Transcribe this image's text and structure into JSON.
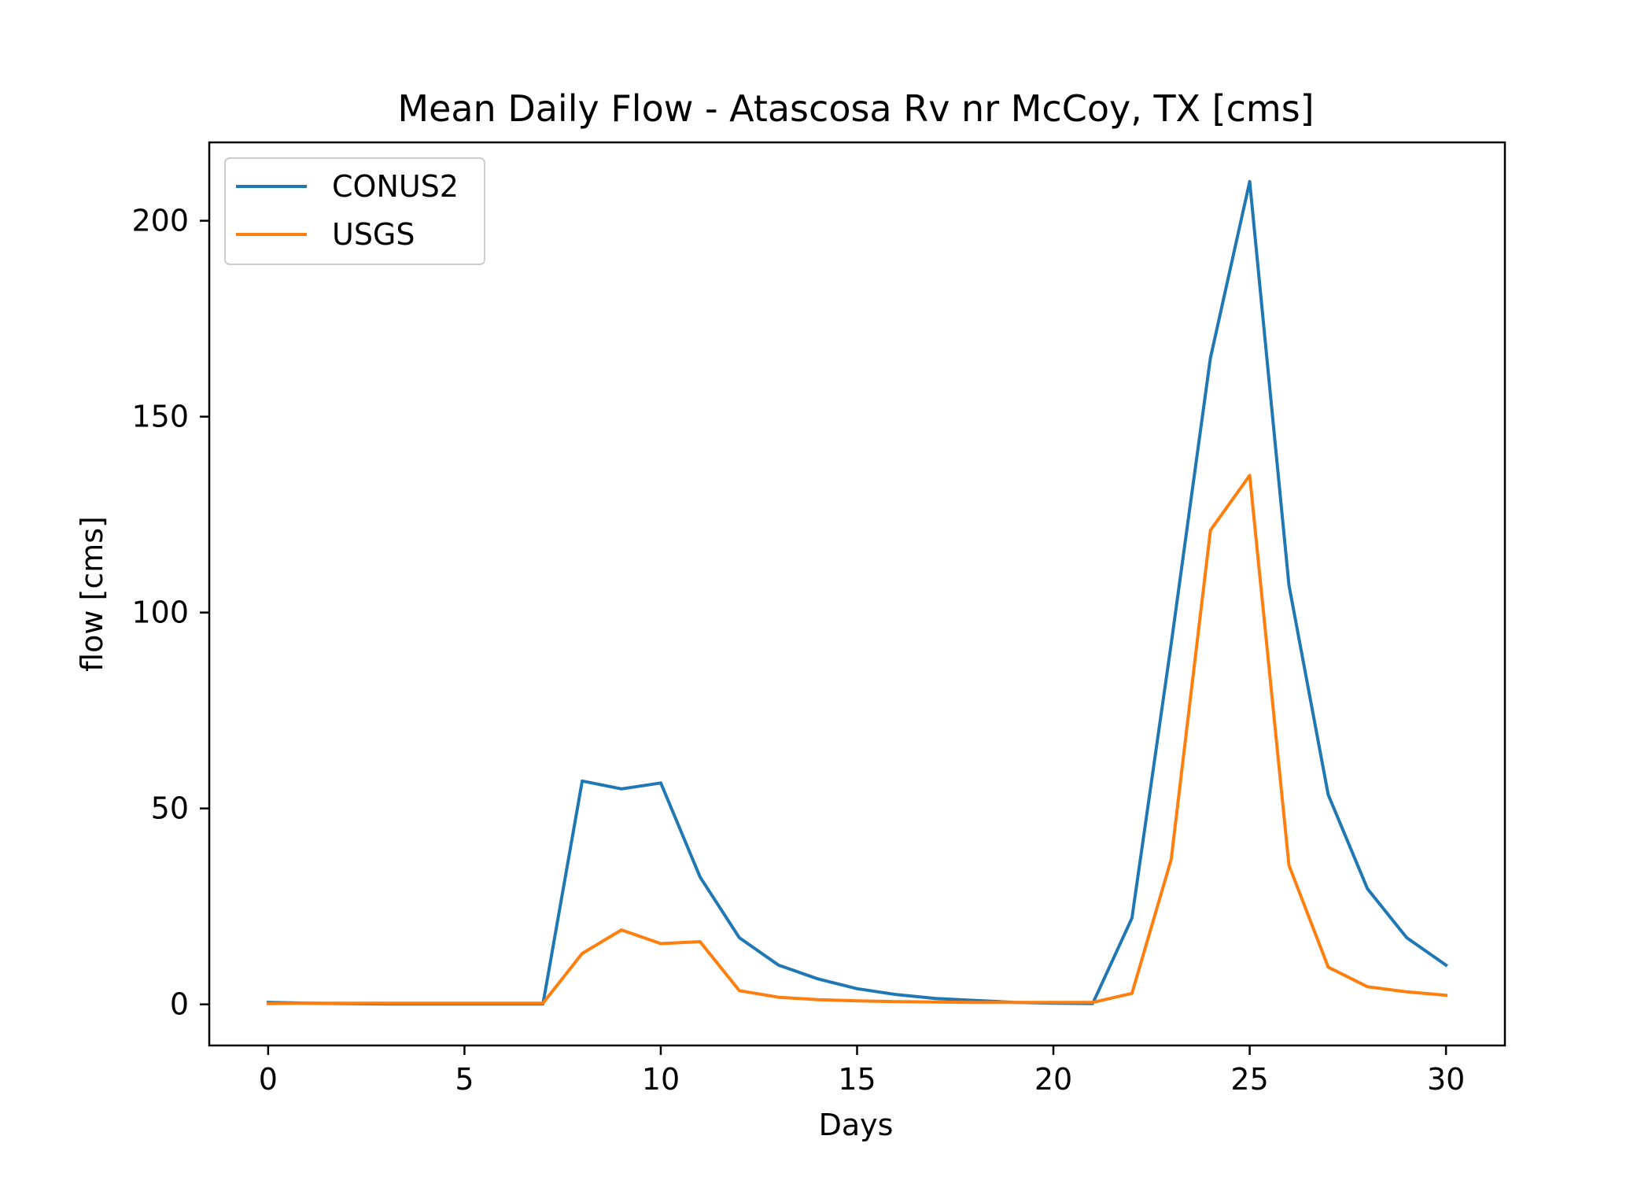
{
  "chart_data": {
    "type": "line",
    "title": "Mean Daily Flow - Atascosa Rv nr McCoy, TX [cms]",
    "xlabel": "Days",
    "ylabel": "flow [cms]",
    "xlim": [
      -1.5,
      31.5
    ],
    "ylim": [
      -10.5,
      220
    ],
    "xticks": [
      0,
      5,
      10,
      15,
      20,
      25,
      30
    ],
    "yticks": [
      0,
      50,
      100,
      150,
      200
    ],
    "grid": false,
    "legend_position": "top-left",
    "x": [
      0,
      1,
      2,
      3,
      4,
      5,
      6,
      7,
      8,
      9,
      10,
      11,
      12,
      13,
      14,
      15,
      16,
      17,
      18,
      19,
      20,
      21,
      22,
      23,
      24,
      25,
      26,
      27,
      28,
      29,
      30
    ],
    "series": [
      {
        "name": "CONUS2",
        "color": "#1f77b4",
        "values": [
          0.5,
          0.3,
          0.2,
          0.1,
          0.1,
          0.1,
          0.1,
          0.1,
          57,
          55,
          56.5,
          32.5,
          17,
          10,
          6.5,
          4,
          2.5,
          1.5,
          1,
          0.5,
          0.3,
          0.2,
          22,
          92,
          165,
          210,
          107,
          53.5,
          29.5,
          17,
          10
        ]
      },
      {
        "name": "USGS",
        "color": "#ff7f0e",
        "values": [
          0.2,
          0.3,
          0.3,
          0.3,
          0.3,
          0.3,
          0.3,
          0.3,
          13,
          19,
          15.5,
          16,
          3.5,
          1.8,
          1.2,
          0.9,
          0.7,
          0.6,
          0.5,
          0.5,
          0.5,
          0.5,
          2.8,
          37,
          121,
          135,
          35.5,
          9.5,
          4.5,
          3.2,
          2.3
        ]
      }
    ]
  }
}
